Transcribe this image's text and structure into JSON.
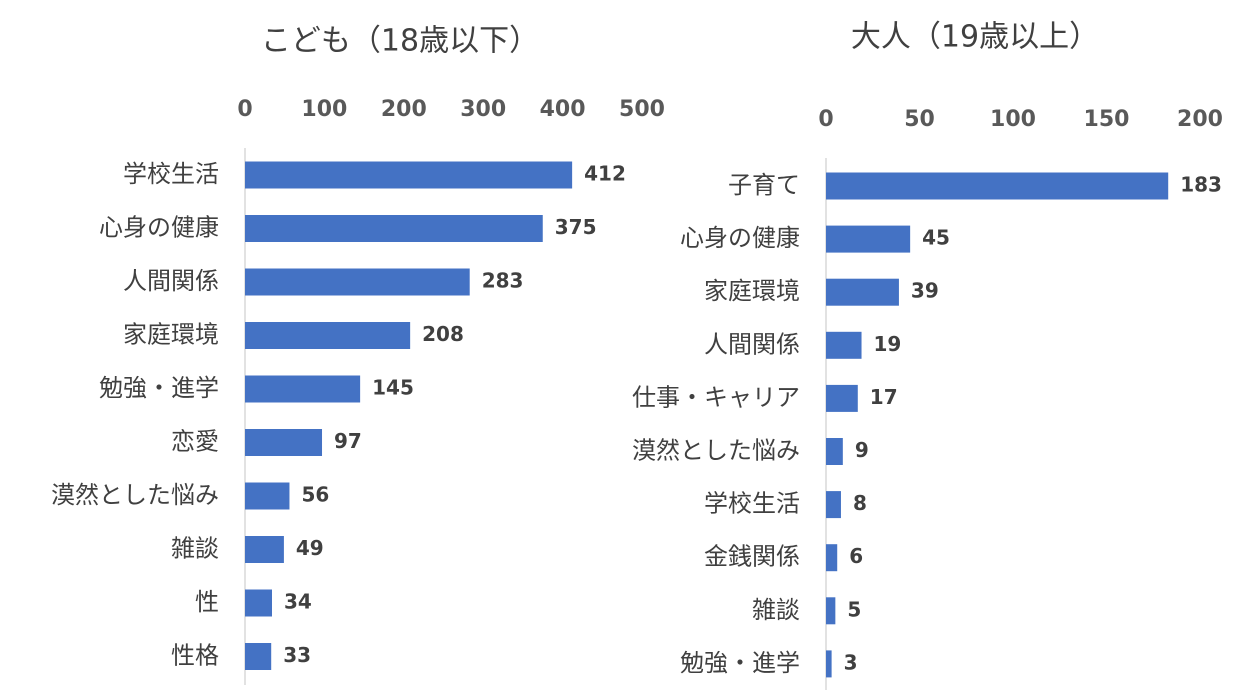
{
  "chart_data": [
    {
      "type": "bar",
      "orientation": "horizontal",
      "title": "こども（18歳以下）",
      "categories": [
        "学校生活",
        "心身の健康",
        "人間関係",
        "家庭環境",
        "勉強・進学",
        "恋愛",
        "漠然とした悩み",
        "雑談",
        "性",
        "性格"
      ],
      "values": [
        412,
        375,
        283,
        208,
        145,
        97,
        56,
        49,
        34,
        33
      ],
      "color": "#4472c4",
      "xlim": [
        0,
        500
      ],
      "xticks": [
        0,
        100,
        200,
        300,
        400,
        500
      ],
      "grid": false
    },
    {
      "type": "bar",
      "orientation": "horizontal",
      "title": "大人（19歳以上）",
      "categories": [
        "子育て",
        "心身の健康",
        "家庭環境",
        "人間関係",
        "仕事・キャリア",
        "漠然とした悩み",
        "学校生活",
        "金銭関係",
        "雑談",
        "勉強・進学"
      ],
      "values": [
        183,
        45,
        39,
        19,
        17,
        9,
        8,
        6,
        5,
        3
      ],
      "color": "#4472c4",
      "xlim": [
        0,
        200
      ],
      "xticks": [
        0,
        50,
        100,
        150,
        200
      ],
      "grid": false
    }
  ]
}
